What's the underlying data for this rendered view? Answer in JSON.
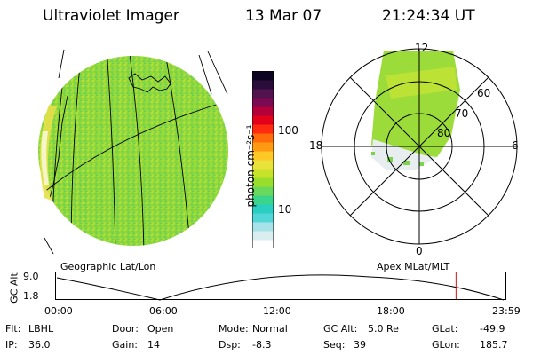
{
  "header": {
    "instrument": "Ultraviolet Imager",
    "date": "13 Mar 07",
    "time": "21:24:34 UT"
  },
  "colorbar": {
    "unit_label": "photon cm⁻²s⁻¹",
    "ticks": [
      "100",
      "10"
    ],
    "colors": [
      "#ffffff",
      "#d8eef0",
      "#a7e2e8",
      "#52d6d8",
      "#29cfc0",
      "#3ad48a",
      "#6ad85a",
      "#9ade2c",
      "#c8e22a",
      "#e8e23a",
      "#ffc824",
      "#ff9a12",
      "#ff6a0a",
      "#ff2a10",
      "#e2001a",
      "#b4003a",
      "#7c0a52",
      "#52124e",
      "#2a0c3a",
      "#0c0420"
    ]
  },
  "geo_panel": {
    "caption": "Geographic Lat/Lon"
  },
  "polar_panel": {
    "caption": "Apex MLat/MLT",
    "mlt_labels": {
      "top": "12",
      "left": "18",
      "right": "6",
      "bottom": "0"
    },
    "lat_labels": [
      "60",
      "70",
      "80"
    ]
  },
  "altitude_track": {
    "axis_label": "GC Alt",
    "y_ticks": [
      "9.0",
      "1.8"
    ],
    "x_ticks": [
      "00:00",
      "06:00",
      "12:00",
      "18:00",
      "23:59"
    ],
    "current_time_fraction": 0.89
  },
  "status": {
    "flt_label": "Flt:",
    "flt_value": "LBHL",
    "door_label": "Door:",
    "door_value": "Open",
    "mode_label": "Mode:",
    "mode_value": "Normal",
    "gcalt_label": "GC Alt:",
    "gcalt_value": "5.0 Re",
    "glat_label": "GLat:",
    "glat_value": "-49.9",
    "ip_label": "IP:",
    "ip_value": "36.0",
    "gain_label": "Gain:",
    "gain_value": "14",
    "dsp_label": "Dsp:",
    "dsp_value": "-8.3",
    "seq_label": "Seq:",
    "seq_value": "39",
    "glon_label": "GLon:",
    "glon_value": "185.7"
  }
}
